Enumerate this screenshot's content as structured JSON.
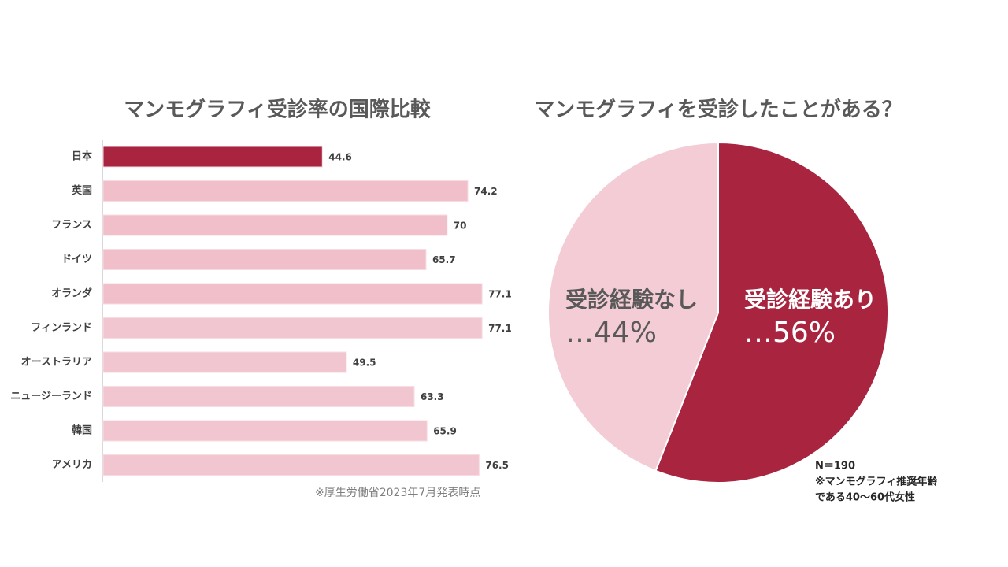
{
  "chart_data": [
    {
      "type": "barh",
      "title": "マンモグラフィ受診率の国際比較",
      "categories": [
        "日本",
        "英国",
        "フランス",
        "ドイツ",
        "オランダ",
        "フィンランド",
        "オーストラリア",
        "ニュージーランド",
        "韓国",
        "アメリカ"
      ],
      "values": [
        44.6,
        74.2,
        70,
        65.7,
        77.1,
        77.1,
        49.5,
        63.3,
        65.9,
        76.5
      ],
      "colors": [
        "#a8243f",
        "#f0bfca",
        "#f0bfca",
        "#f0bfca",
        "#f0bfca",
        "#f2c6d0",
        "#f2c6d0",
        "#f2c6d0",
        "#f2c6d0",
        "#f2c6d0"
      ],
      "xlim": [
        0,
        100
      ],
      "note": "※厚生労働省2023年7月発表時点"
    },
    {
      "type": "pie",
      "title": "マンモグラフィを受診したことがある？",
      "categories": [
        "受診経験あり",
        "受診経験なし"
      ],
      "values": [
        56,
        44
      ],
      "value_labels": [
        "…56%",
        "…44%"
      ],
      "colors": [
        "#a8243f",
        "#f3ccd5"
      ],
      "label_colors": [
        "#ffffff",
        "#595959"
      ],
      "note": [
        "N＝190",
        "※マンモグラフィ推奨年齢",
        "である40〜60代女性"
      ]
    }
  ]
}
